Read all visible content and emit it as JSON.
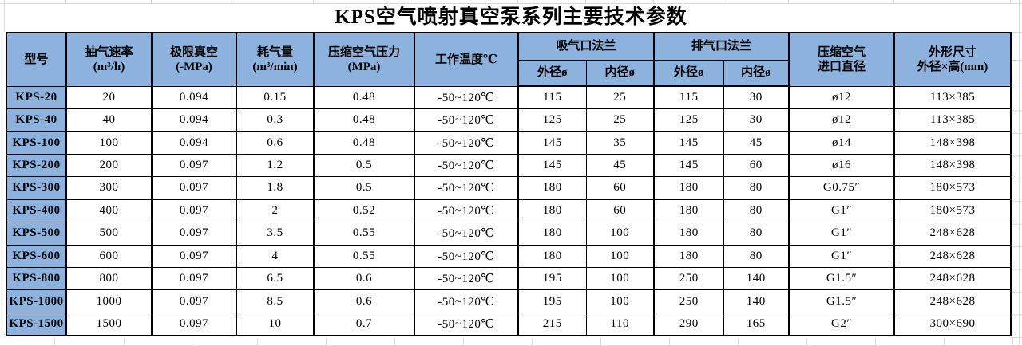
{
  "page": {
    "title": "KPS空气喷射真空泵系列主要技术参数"
  },
  "table": {
    "headers": {
      "model": "型号",
      "pumping_speed": "抽气速率\n(m³/h)",
      "ultimate_vacuum": "极限真空\n(-MPa)",
      "air_consumption": "耗气量\n(m³/min)",
      "compressed_air_pressure": "压缩空气压力\n(MPa)",
      "working_temperature": "工作温度℃",
      "suction_flange": "吸气口法兰",
      "exhaust_flange": "排气口法兰",
      "outer_diameter": "外径ø",
      "inner_diameter": "内径ø",
      "compressed_air_inlet": "压缩空气\n进口直径",
      "dimensions": "外形尺寸\n外径×高(mm)"
    },
    "rows": [
      {
        "model": "KPS-20",
        "values": [
          "20",
          "0.094",
          "0.15",
          "0.48",
          "-50~120℃",
          "115",
          "25",
          "115",
          "30",
          "ø12",
          "113×385"
        ]
      },
      {
        "model": "KPS-40",
        "values": [
          "40",
          "0.094",
          "0.3",
          "0.48",
          "-50~120℃",
          "125",
          "25",
          "125",
          "30",
          "ø12",
          "113×385"
        ]
      },
      {
        "model": "KPS-100",
        "values": [
          "100",
          "0.094",
          "0.6",
          "0.48",
          "-50~120℃",
          "145",
          "35",
          "145",
          "45",
          "ø14",
          "148×398"
        ]
      },
      {
        "model": "KPS-200",
        "values": [
          "200",
          "0.097",
          "1.2",
          "0.5",
          "-50~120℃",
          "145",
          "45",
          "145",
          "60",
          "ø16",
          "148×398"
        ]
      },
      {
        "model": "KPS-300",
        "values": [
          "300",
          "0.097",
          "1.8",
          "0.5",
          "-50~120℃",
          "180",
          "60",
          "180",
          "80",
          "G0.75″",
          "180×573"
        ]
      },
      {
        "model": "KPS-400",
        "values": [
          "400",
          "0.097",
          "2",
          "0.52",
          "-50~120℃",
          "180",
          "60",
          "180",
          "80",
          "G1″",
          "180×573"
        ]
      },
      {
        "model": "KPS-500",
        "values": [
          "500",
          "0.097",
          "3.5",
          "0.55",
          "-50~120℃",
          "180",
          "100",
          "180",
          "80",
          "G1″",
          "248×628"
        ]
      },
      {
        "model": "KPS-600",
        "values": [
          "600",
          "0.097",
          "4",
          "0.55",
          "-50~120℃",
          "180",
          "100",
          "180",
          "80",
          "G1″",
          "248×628"
        ]
      },
      {
        "model": "KPS-800",
        "values": [
          "800",
          "0.097",
          "6.5",
          "0.6",
          "-50~120℃",
          "195",
          "100",
          "250",
          "140",
          "G1.5″",
          "248×628"
        ]
      },
      {
        "model": "KPS-1000",
        "values": [
          "1000",
          "0.097",
          "8.5",
          "0.6",
          "-50~120℃",
          "195",
          "100",
          "250",
          "140",
          "G1.5″",
          "248×628"
        ]
      },
      {
        "model": "KPS-1500",
        "values": [
          "1500",
          "0.097",
          "10",
          "0.7",
          "-50~120℃",
          "215",
          "110",
          "290",
          "165",
          "G2″",
          "300×690"
        ]
      }
    ]
  },
  "colors": {
    "header_fill": "#8DB2DD",
    "table_border": "#000000",
    "gridline": "#D8D8D8"
  }
}
